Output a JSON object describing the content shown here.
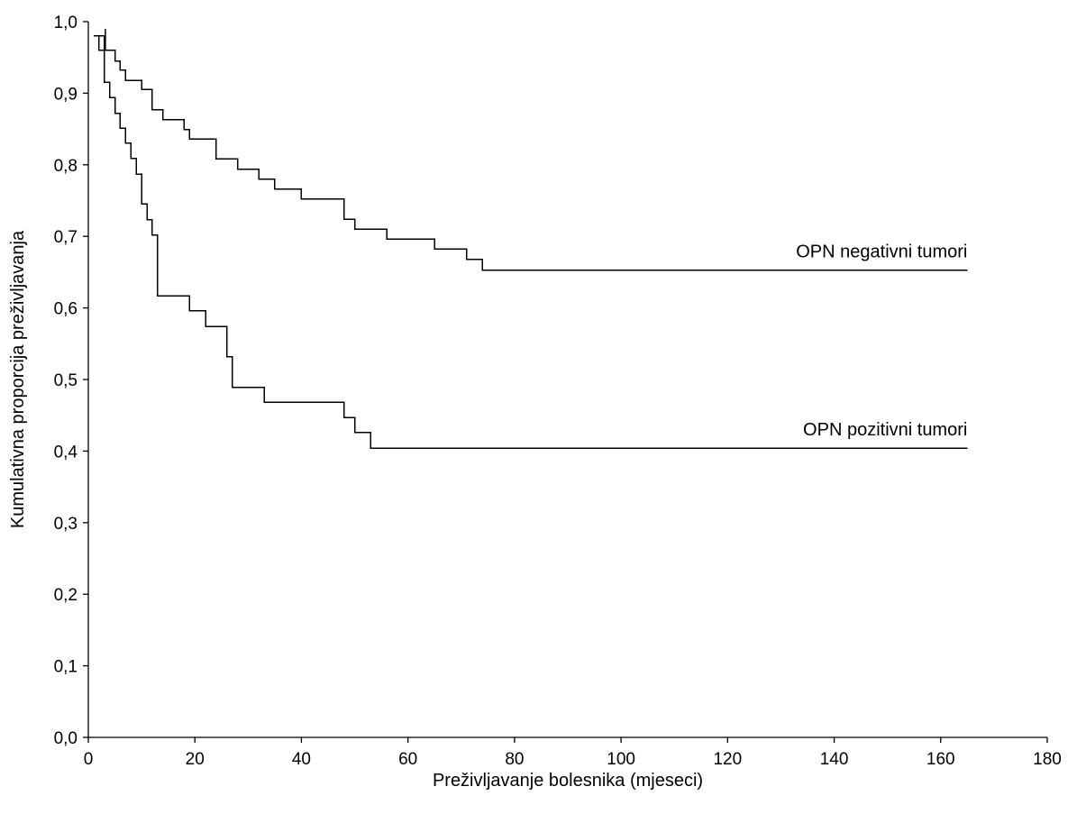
{
  "chart_data": {
    "type": "line",
    "title": "",
    "xlabel": "Preživljavanje bolesnika (mjeseci)",
    "ylabel": "Kumulativna proporcija preživljavanja",
    "xlim": [
      0,
      180
    ],
    "ylim": [
      0.0,
      1.0
    ],
    "x_ticks": [
      0,
      20,
      40,
      60,
      80,
      100,
      120,
      140,
      160,
      180
    ],
    "x_tick_labels": [
      "0",
      "20",
      "40",
      "60",
      "80",
      "100",
      "120",
      "140",
      "160",
      "180"
    ],
    "y_ticks": [
      0.0,
      0.1,
      0.2,
      0.3,
      0.4,
      0.5,
      0.6,
      0.7,
      0.8,
      0.9,
      1.0
    ],
    "y_tick_labels": [
      "0,0",
      "0,1",
      "0,2",
      "0,3",
      "0,4",
      "0,5",
      "0,6",
      "0,7",
      "0,8",
      "0,9",
      "1,0"
    ],
    "grid": false,
    "step": true,
    "series": [
      {
        "name": "OPN negativni tumori",
        "label_anchor_x": 165,
        "censor_marks": [
          {
            "x": 3.2,
            "y": 0.96,
            "y2": 0.99
          }
        ],
        "x": [
          1,
          2,
          5,
          6,
          7,
          10,
          12,
          14,
          18,
          19,
          24,
          28,
          32,
          35,
          40,
          48,
          49,
          50,
          56,
          65,
          71,
          74,
          165
        ],
        "y": [
          0.98,
          0.96,
          0.945,
          0.932,
          0.918,
          0.905,
          0.877,
          0.863,
          0.849,
          0.836,
          0.808,
          0.794,
          0.78,
          0.766,
          0.752,
          0.724,
          0.724,
          0.71,
          0.696,
          0.682,
          0.668,
          0.653,
          0.653
        ]
      },
      {
        "name": "OPN pozitivni tumori",
        "label_anchor_x": 165,
        "x": [
          2,
          3,
          4,
          5,
          6,
          7,
          8,
          9,
          10,
          11,
          12,
          13,
          19,
          22,
          26,
          27,
          33,
          48,
          50,
          53,
          165
        ],
        "y": [
          0.98,
          0.915,
          0.894,
          0.872,
          0.851,
          0.83,
          0.809,
          0.787,
          0.745,
          0.723,
          0.702,
          0.617,
          0.596,
          0.574,
          0.532,
          0.489,
          0.468,
          0.447,
          0.426,
          0.404,
          0.404
        ]
      }
    ]
  }
}
